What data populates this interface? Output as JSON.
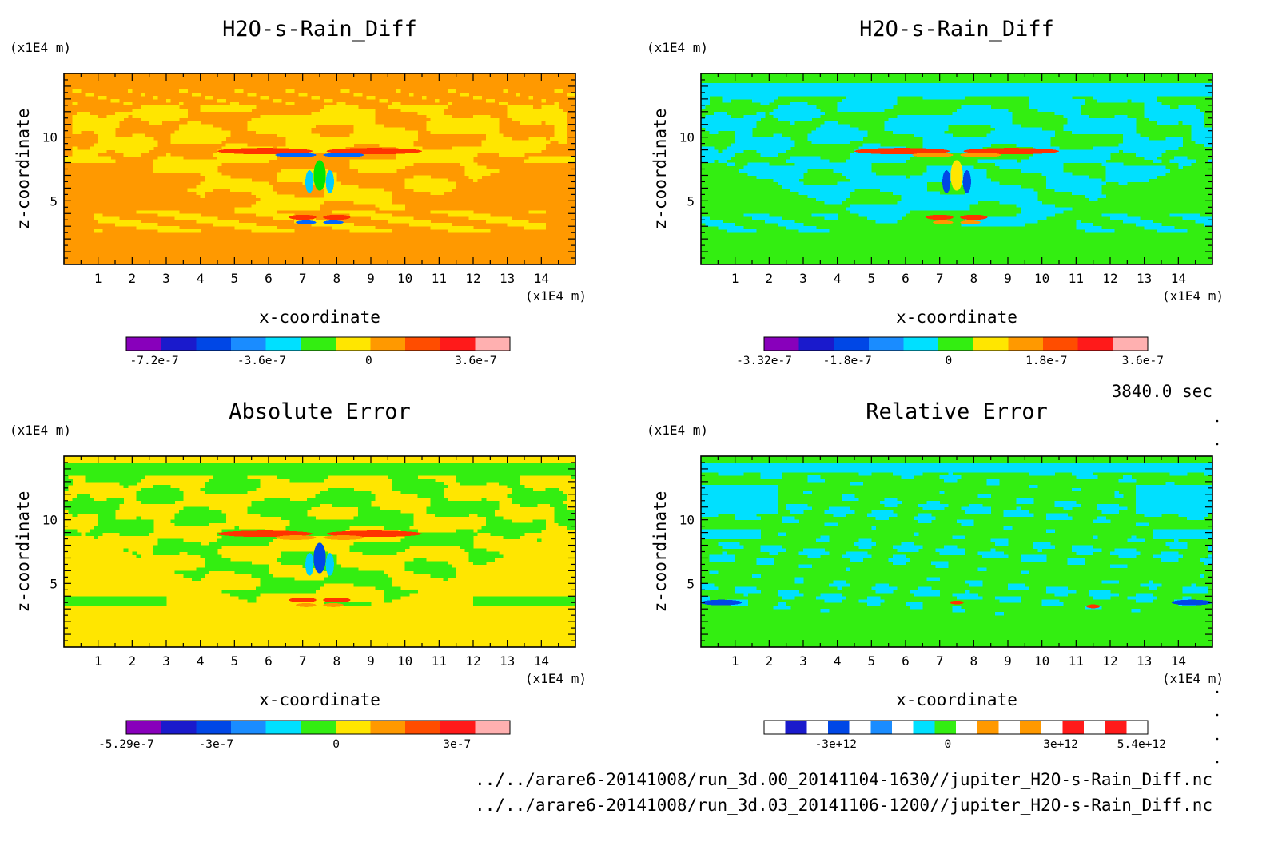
{
  "time_label": "3840.0 sec",
  "footer": {
    "line1": "../../arare6-20141008/run_3d.00_20141104-1630//jupiter_H2O-s-Rain_Diff.nc",
    "line2": "../../arare6-20141008/run_3d.03_20141106-1200//jupiter_H2O-s-Rain_Diff.nc"
  },
  "chart_data": [
    {
      "type": "heatmap",
      "title": "H2O-s-Rain_Diff",
      "xlabel": "x-coordinate",
      "ylabel": "z-coordinate",
      "x_unit": "(x1E4 m)",
      "y_unit": "(x1E4 m)",
      "xlim": [
        0,
        15
      ],
      "ylim": [
        0,
        15
      ],
      "x_ticks": [
        1,
        2,
        3,
        4,
        5,
        6,
        7,
        8,
        9,
        10,
        11,
        12,
        13,
        14
      ],
      "y_ticks": [
        5,
        10
      ],
      "background_color": "#ff9900",
      "pattern_color": "#ffe600",
      "feature_colors": [
        "#ff3300",
        "#00e600",
        "#00ccff",
        "#0066ff"
      ],
      "colorbar": {
        "colors": [
          "#8800bb",
          "#1a1acc",
          "#0047e6",
          "#1a8cff",
          "#00e0ff",
          "#33ee11",
          "#ffe600",
          "#ff9900",
          "#ff4d00",
          "#ff1a1a",
          "#ffb0b0"
        ],
        "tick_labels": [
          "-7.2e-7",
          "-3.6e-7",
          "0",
          "3.6e-7"
        ],
        "tick_positions": [
          0.073,
          0.353,
          0.632,
          0.911
        ]
      }
    },
    {
      "type": "heatmap",
      "title": "H2O-s-Rain_Diff",
      "xlabel": "x-coordinate",
      "ylabel": "z-coordinate",
      "x_unit": "(x1E4 m)",
      "y_unit": "(x1E4 m)",
      "xlim": [
        0,
        15
      ],
      "ylim": [
        0,
        15
      ],
      "x_ticks": [
        1,
        2,
        3,
        4,
        5,
        6,
        7,
        8,
        9,
        10,
        11,
        12,
        13,
        14
      ],
      "y_ticks": [
        5,
        10
      ],
      "background_color": "#33ee11",
      "pattern_color": "#00e0ff",
      "feature_colors": [
        "#ff3300",
        "#ffe600",
        "#0047e6",
        "#ff9900"
      ],
      "colorbar": {
        "colors": [
          "#8800bb",
          "#1a1acc",
          "#0047e6",
          "#1a8cff",
          "#00e0ff",
          "#33ee11",
          "#ffe600",
          "#ff9900",
          "#ff4d00",
          "#ff1a1a",
          "#ffb0b0"
        ],
        "tick_labels": [
          "-3.32e-7",
          "-1.8e-7",
          "0",
          "1.8e-7",
          "3.6e-7"
        ],
        "tick_positions": [
          0.0,
          0.217,
          0.481,
          0.736,
          0.987
        ]
      }
    },
    {
      "type": "heatmap",
      "title": "Absolute Error",
      "xlabel": "x-coordinate",
      "ylabel": "z-coordinate",
      "x_unit": "(x1E4 m)",
      "y_unit": "(x1E4 m)",
      "xlim": [
        0,
        15
      ],
      "ylim": [
        0,
        15
      ],
      "x_ticks": [
        1,
        2,
        3,
        4,
        5,
        6,
        7,
        8,
        9,
        10,
        11,
        12,
        13,
        14
      ],
      "y_ticks": [
        5,
        10
      ],
      "background_color": "#ffe600",
      "pattern_color": "#33ee11",
      "feature_colors": [
        "#ff3300",
        "#0047e6",
        "#00ccff",
        "#ff9900"
      ],
      "colorbar": {
        "colors": [
          "#8800bb",
          "#1a1acc",
          "#0047e6",
          "#1a8cff",
          "#00e0ff",
          "#33ee11",
          "#ffe600",
          "#ff9900",
          "#ff4d00",
          "#ff1a1a",
          "#ffb0b0"
        ],
        "tick_labels": [
          "-5.29e-7",
          "-3e-7",
          "0",
          "3e-7"
        ],
        "tick_positions": [
          0.0,
          0.234,
          0.547,
          0.862
        ]
      }
    },
    {
      "type": "heatmap",
      "title": "Relative Error",
      "xlabel": "x-coordinate",
      "ylabel": "z-coordinate",
      "x_unit": "(x1E4 m)",
      "y_unit": "(x1E4 m)",
      "xlim": [
        0,
        15
      ],
      "ylim": [
        0,
        15
      ],
      "x_ticks": [
        1,
        2,
        3,
        4,
        5,
        6,
        7,
        8,
        9,
        10,
        11,
        12,
        13,
        14
      ],
      "y_ticks": [
        5,
        10
      ],
      "background_color": "#33ee11",
      "pattern_color": "#00e0ff",
      "feature_colors": [
        "#00ccff",
        "#1a8cff",
        "#ff3300",
        "#0047e6"
      ],
      "colorbar": {
        "colors": [
          "#ffffff",
          "#1a1acc",
          "#ffffff",
          "#0047e6",
          "#ffffff",
          "#1a8cff",
          "#ffffff",
          "#00e0ff",
          "#33ee11",
          "#ffffff",
          "#ff9900",
          "#ffffff",
          "#ff9900",
          "#ffffff",
          "#ff1a1a",
          "#ffffff",
          "#ff1a1a",
          "#ffffff"
        ],
        "tick_labels": [
          "-3e+12",
          "0",
          "3e+12",
          "5.4e+12"
        ],
        "tick_positions": [
          0.187,
          0.479,
          0.773,
          0.984
        ]
      }
    }
  ]
}
